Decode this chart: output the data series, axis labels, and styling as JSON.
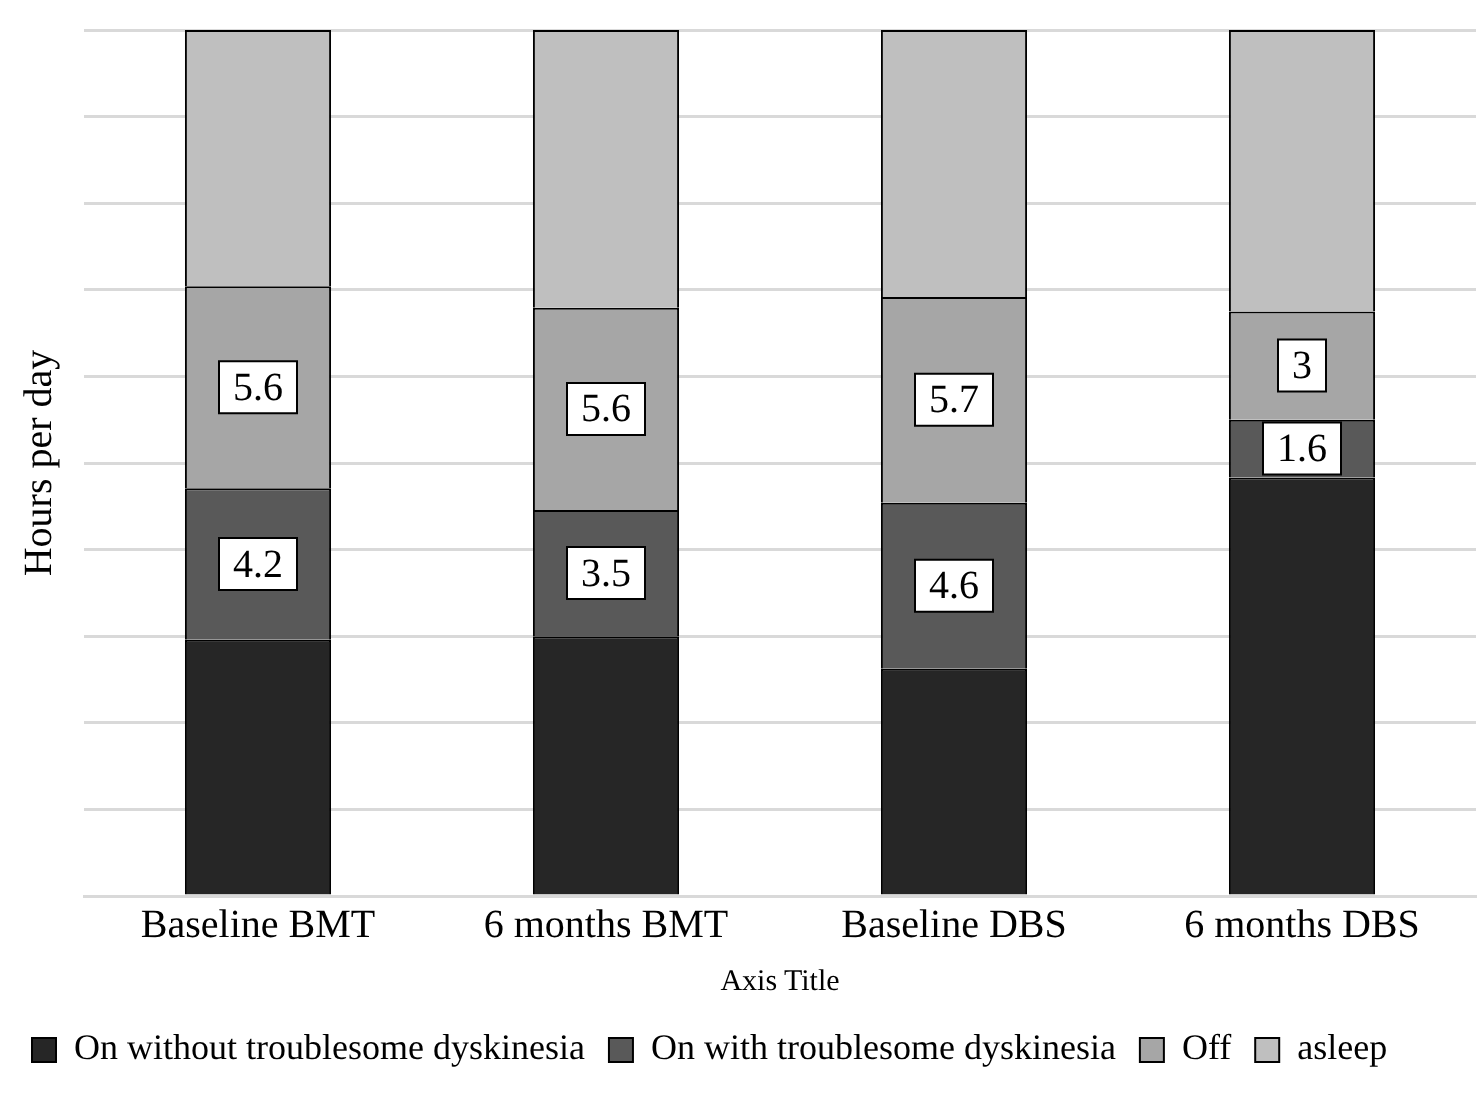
{
  "chart_data": {
    "type": "bar",
    "stacked": true,
    "xlabel": "Axis Title",
    "ylabel": "Hours per day",
    "categories": [
      "Baseline BMT",
      "6 months BMT",
      "Baseline DBS",
      "6 months DBS"
    ],
    "series": [
      {
        "name": "On without troublesome dyskinesia",
        "color": "#262626",
        "values": [
          7.1,
          7.2,
          6.3,
          11.6
        ]
      },
      {
        "name": "On with troublesome dyskinesia",
        "color": "#595959",
        "values": [
          4.2,
          3.5,
          4.6,
          1.6
        ],
        "value_labels": [
          "4.2",
          "3.5",
          "4.6",
          "1.6"
        ]
      },
      {
        "name": "Off",
        "color": "#a6a6a6",
        "values": [
          5.6,
          5.6,
          5.7,
          3.0
        ],
        "value_labels": [
          "5.6",
          "5.6",
          "5.7",
          "3"
        ]
      },
      {
        "name": "asleep",
        "color": "#bfbfbf",
        "values": [
          7.1,
          7.7,
          7.4,
          7.8
        ]
      }
    ],
    "ylim": [
      0,
      24
    ],
    "yticks": [
      {
        "value": 0,
        "label": null
      },
      {
        "value": 2.4,
        "label": null
      },
      {
        "value": 4.8,
        "label": null
      },
      {
        "value": 7.2,
        "label": null
      },
      {
        "value": 9.6,
        "label": null
      },
      {
        "value": 12,
        "label": null
      },
      {
        "value": 14.4,
        "label": null
      },
      {
        "value": 16.8,
        "label": null
      },
      {
        "value": 19.2,
        "label": null
      },
      {
        "value": 21.6,
        "label": null
      },
      {
        "value": 24,
        "label": null
      }
    ],
    "grid": "y",
    "legend": "bottom"
  }
}
